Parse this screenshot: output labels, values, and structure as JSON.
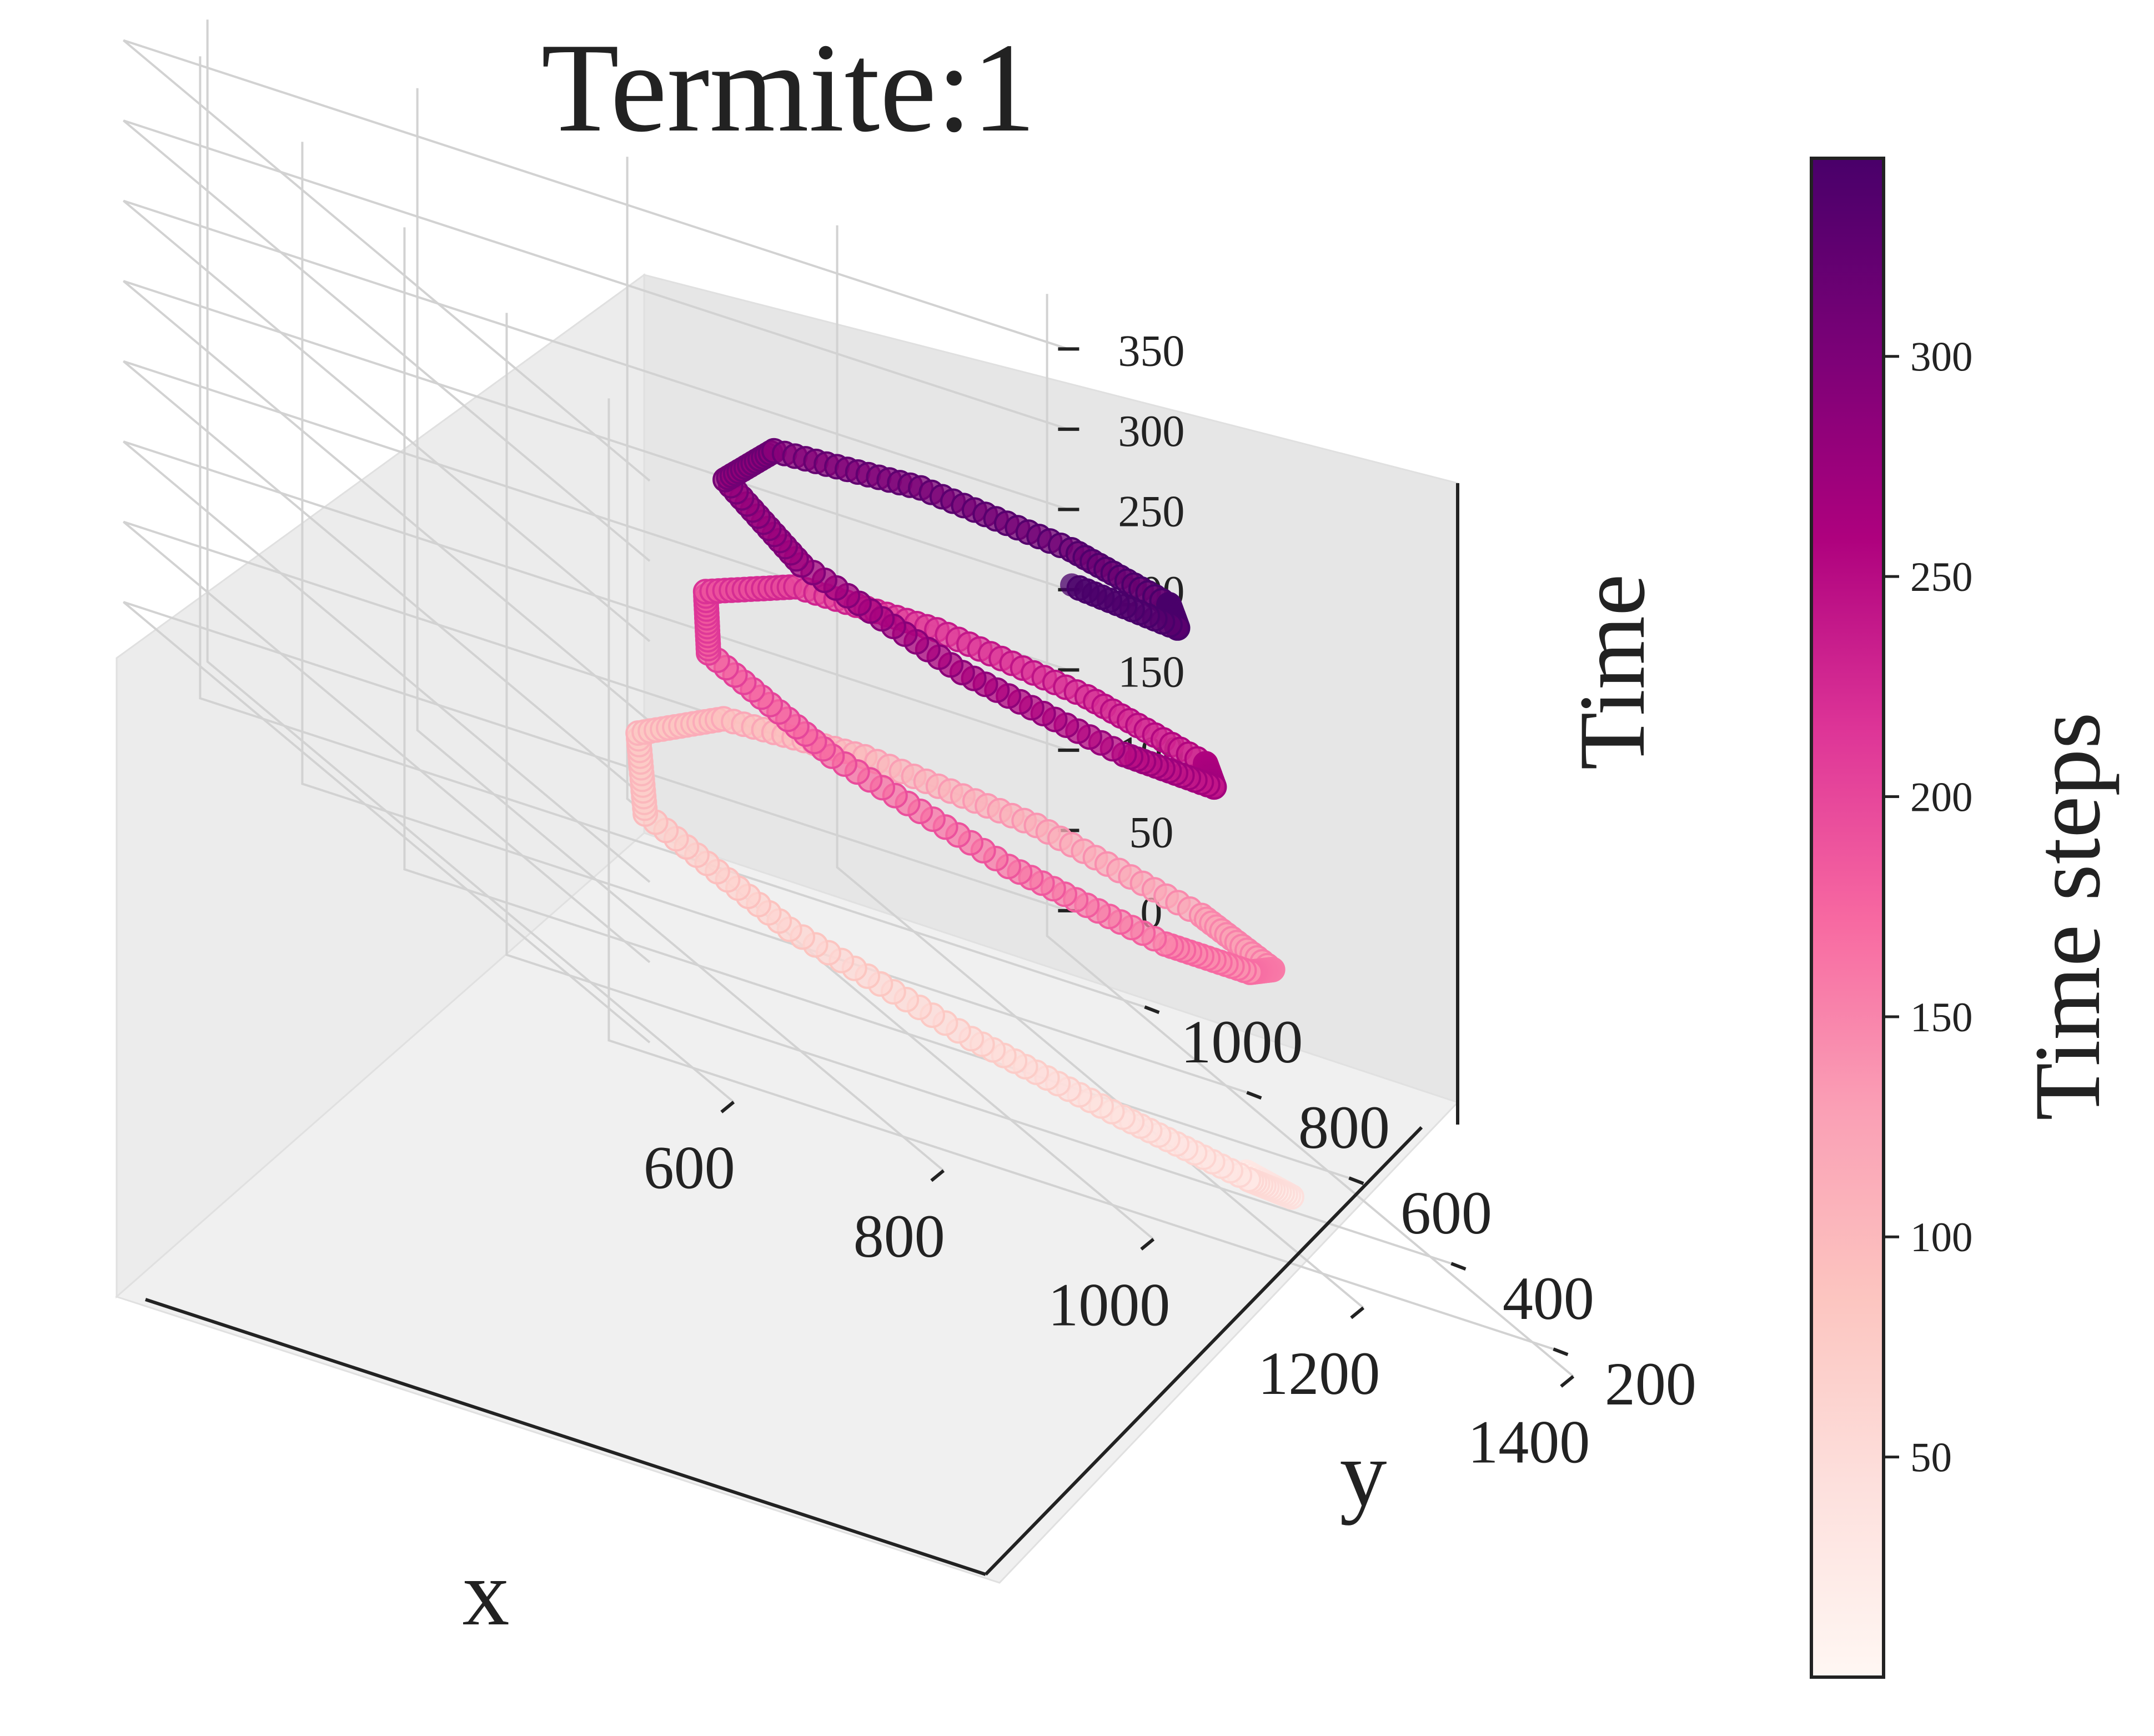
{
  "chart_data": {
    "type": "scatter",
    "projection": "3d",
    "title": "Termite:1",
    "xlabel": "x",
    "ylabel": "y",
    "zlabel": "Time",
    "xlim": [
      520,
      1420
    ],
    "ylim": [
      120,
      1150
    ],
    "zlim": [
      -20,
      380
    ],
    "x_ticks": [
      600,
      800,
      1000,
      1200,
      1400
    ],
    "y_ticks": [
      200,
      400,
      600,
      800,
      1000
    ],
    "z_ticks": [
      0,
      50,
      100,
      150,
      200,
      250,
      300,
      350
    ],
    "x_tick_labels": [
      "600",
      "800",
      "1000",
      "1200",
      "1400"
    ],
    "y_tick_labels": [
      "200",
      "400",
      "600",
      "800",
      "1000"
    ],
    "z_tick_labels": [
      "0",
      "50",
      "100",
      "150",
      "200",
      "250",
      "300",
      "350"
    ],
    "grid": true,
    "colorbar": {
      "label": "Time steps",
      "colormap": "RdPu",
      "range": [
        0,
        345
      ],
      "ticks": [
        50,
        100,
        150,
        200,
        250,
        300
      ],
      "tick_labels": [
        "50",
        "100",
        "150",
        "200",
        "250",
        "300"
      ]
    },
    "series": [
      {
        "points": [
          [
            1210,
            370,
            0
          ],
          [
            1190,
            240,
            15
          ],
          [
            1110,
            160,
            30
          ],
          [
            1000,
            180,
            40
          ],
          [
            880,
            230,
            50
          ],
          [
            770,
            360,
            60
          ],
          [
            730,
            560,
            70
          ],
          [
            840,
            800,
            80
          ],
          [
            970,
            900,
            90
          ],
          [
            1090,
            870,
            100
          ],
          [
            1200,
            760,
            110
          ],
          [
            1260,
            560,
            120
          ],
          [
            1240,
            380,
            130
          ],
          [
            1170,
            280,
            140
          ],
          [
            1060,
            220,
            150
          ],
          [
            930,
            260,
            160
          ],
          [
            830,
            400,
            170
          ],
          [
            800,
            580,
            180
          ],
          [
            880,
            750,
            190
          ],
          [
            1000,
            820,
            200
          ],
          [
            1110,
            770,
            210
          ],
          [
            1190,
            640,
            220
          ],
          [
            1220,
            470,
            230
          ],
          [
            1160,
            330,
            240
          ],
          [
            1050,
            280,
            250
          ],
          [
            920,
            330,
            260
          ],
          [
            840,
            480,
            270
          ],
          [
            850,
            650,
            280
          ],
          [
            950,
            760,
            290
          ],
          [
            1080,
            740,
            300
          ],
          [
            1170,
            630,
            310
          ],
          [
            1190,
            480,
            320
          ],
          [
            1130,
            340,
            330
          ],
          [
            1000,
            280,
            345
          ]
        ]
      }
    ]
  }
}
